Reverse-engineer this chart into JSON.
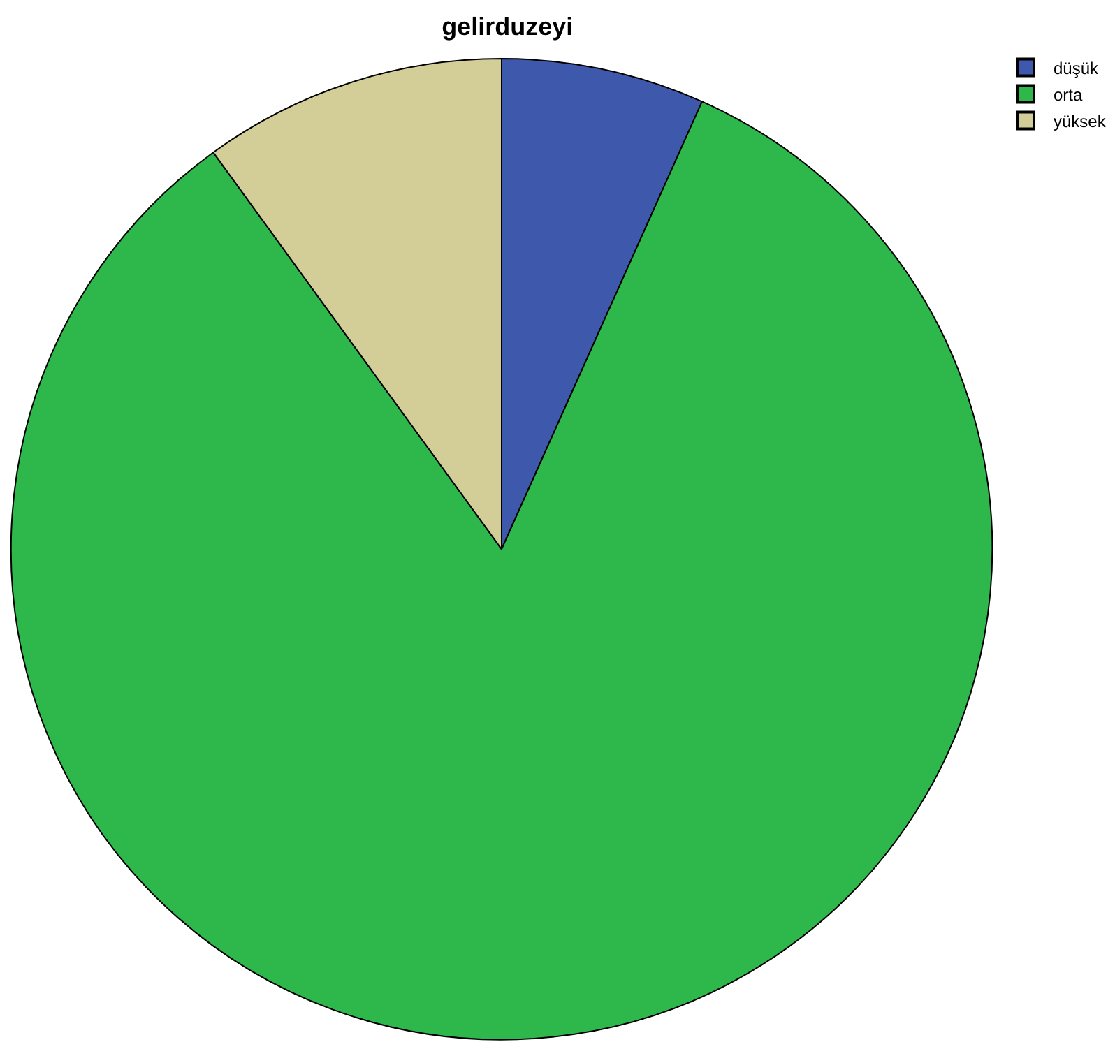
{
  "chart_data": {
    "type": "pie",
    "title": "gelirduzeyi",
    "categories": [
      "düşük",
      "orta",
      "yüksek"
    ],
    "values": [
      6.7,
      83.3,
      10.0
    ],
    "colors": [
      "#3e58ac",
      "#2eb84b",
      "#d3ce98"
    ],
    "legend": "top right"
  }
}
